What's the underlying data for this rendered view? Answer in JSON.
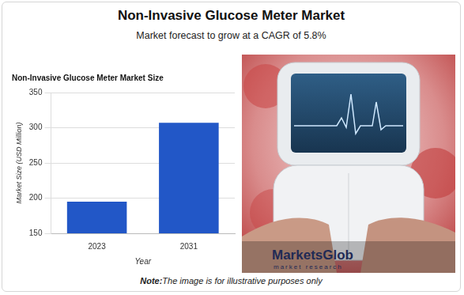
{
  "page": {
    "title": "Non-Invasive Glucose Meter Market",
    "subtitle": "Market forecast to grow at a CAGR of 5.8%",
    "note_label": "Note:",
    "note": "The image is for illustrative purposes only",
    "logo": "MarketsGlob",
    "logo_tagline": "market research"
  },
  "chart_data": {
    "type": "bar",
    "title": "Non-Invasive Glucose Meter Market Size",
    "x_label": "Year",
    "y_label": "Market Size (USD Million)",
    "categories": [
      "2023",
      "2031"
    ],
    "values": [
      195,
      307
    ],
    "color": "#2257c7",
    "ylim": [
      150,
      350
    ],
    "yticks": [
      150,
      200,
      250,
      300,
      350
    ],
    "grid": true
  }
}
